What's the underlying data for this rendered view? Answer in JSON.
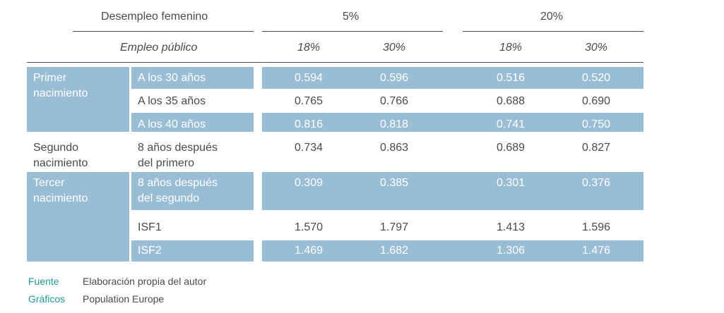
{
  "header": {
    "desempleo_label": "Desempleo femenino",
    "desempleo_5": "5%",
    "desempleo_20": "20%",
    "empleo_label": "Empleo público",
    "empleo_values": [
      "18%",
      "30%",
      "18%",
      "30%"
    ]
  },
  "rows": [
    {
      "group": "Primer\nnacimiento",
      "label": "A los 30 años",
      "values": [
        "0.594",
        "0.596",
        "0.516",
        "0.520"
      ]
    },
    {
      "group": "",
      "label": "A los 35 años",
      "values": [
        "0.765",
        "0.766",
        "0.688",
        "0.690"
      ]
    },
    {
      "group": "",
      "label": "A los 40 años",
      "values": [
        "0.816",
        "0.818",
        "0.741",
        "0.750"
      ]
    },
    {
      "group": "Segundo\nnacimiento",
      "label": "8 años después\ndel primero",
      "values": [
        "0.734",
        "0.863",
        "0.689",
        "0.827"
      ]
    },
    {
      "group": "Tercer\nnacimiento",
      "label": "8 años después\ndel segundo",
      "values": [
        "0.309",
        "0.385",
        "0.301",
        "0.376"
      ]
    },
    {
      "group": "",
      "label": "ISF1",
      "values": [
        "1.570",
        "1.797",
        "1.413",
        "1.596"
      ]
    },
    {
      "group": "",
      "label": "ISF2",
      "values": [
        "1.469",
        "1.682",
        "1.306",
        "1.476"
      ]
    }
  ],
  "footer": {
    "fuente_label": "Fuente",
    "fuente_value": "Elaboración propia del autor",
    "graficos_label": "Gráficos",
    "graficos_value": "Population Europe"
  }
}
